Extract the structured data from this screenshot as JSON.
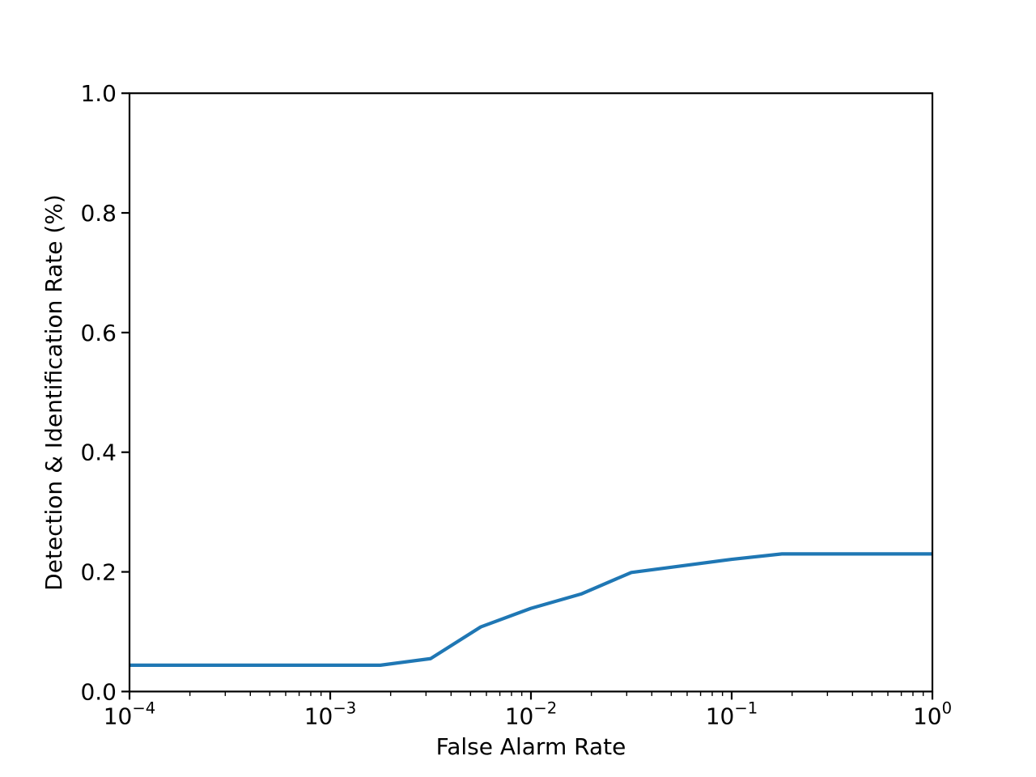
{
  "page": {
    "background_color": "#ffffff"
  },
  "chart_data": {
    "type": "line",
    "title": "",
    "xlabel": "False Alarm Rate",
    "ylabel": "Detection & Identification Rate (%)",
    "x_scale": "log",
    "y_scale": "linear",
    "xlim": [
      0.0001,
      1.0
    ],
    "ylim": [
      0.0,
      1.0
    ],
    "grid": false,
    "legend": null,
    "x_major_ticks": [
      {
        "value": 0.0001,
        "base": "10",
        "exponent": "−4"
      },
      {
        "value": 0.001,
        "base": "10",
        "exponent": "−3"
      },
      {
        "value": 0.01,
        "base": "10",
        "exponent": "−2"
      },
      {
        "value": 0.1,
        "base": "10",
        "exponent": "−1"
      },
      {
        "value": 1.0,
        "base": "10",
        "exponent": "0"
      }
    ],
    "x_minor_ticks_per_decade": [
      2,
      3,
      4,
      5,
      6,
      7,
      8,
      9
    ],
    "y_ticks": [
      {
        "value": 0.0,
        "label": "0.0"
      },
      {
        "value": 0.2,
        "label": "0.2"
      },
      {
        "value": 0.4,
        "label": "0.4"
      },
      {
        "value": 0.6,
        "label": "0.6"
      },
      {
        "value": 0.8,
        "label": "0.8"
      },
      {
        "value": 1.0,
        "label": "1.0"
      }
    ],
    "series": [
      {
        "color": "#1f77b4",
        "line_width": 4.2,
        "x": [
          0.0001,
          0.001778,
          0.003162,
          0.005623,
          0.01,
          0.017783,
          0.031623,
          0.056234,
          0.1,
          0.177828,
          1.0
        ],
        "y": [
          0.044,
          0.044,
          0.055,
          0.108,
          0.139,
          0.163,
          0.199,
          0.21,
          0.221,
          0.23,
          0.23
        ]
      }
    ],
    "axis_color": "#000000"
  }
}
